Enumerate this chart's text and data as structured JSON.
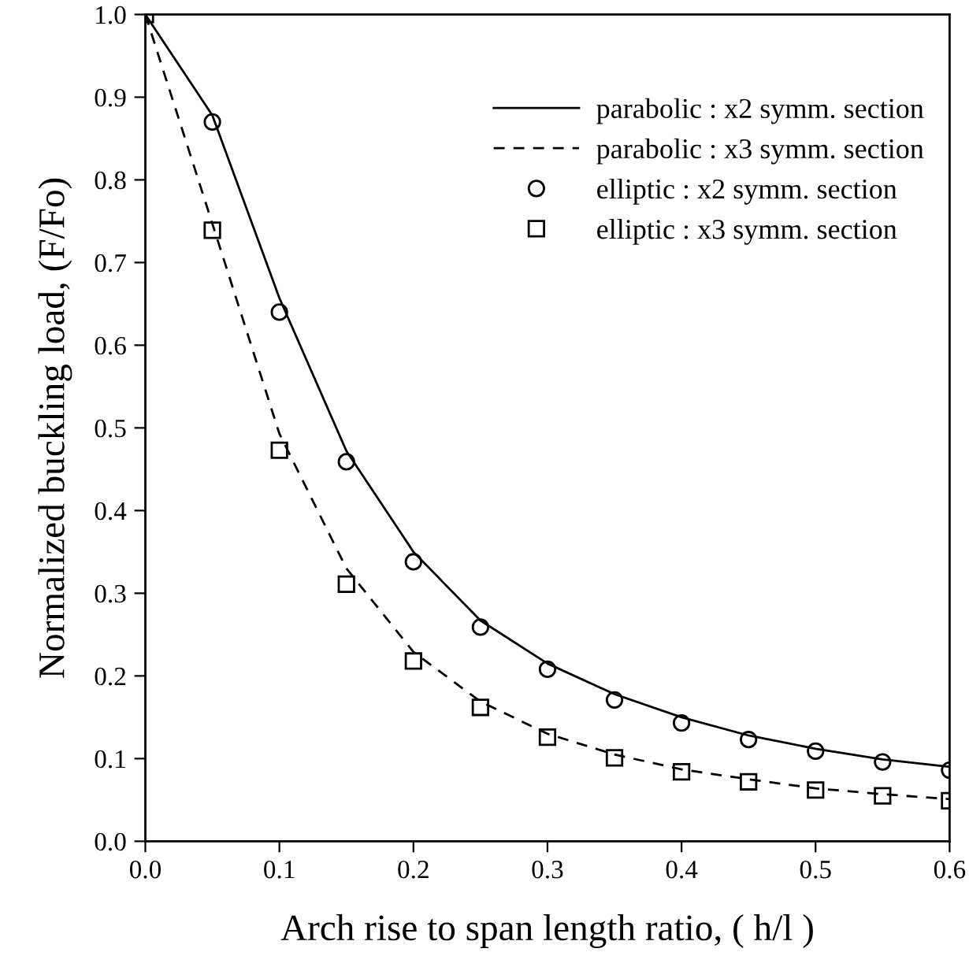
{
  "chart_data": {
    "type": "line",
    "xlabel": "Arch rise to span length ratio, ( h/l )",
    "ylabel": "Normalized buckling load, (F/Fo)",
    "x": [
      0.0,
      0.05,
      0.1,
      0.15,
      0.2,
      0.25,
      0.3,
      0.35,
      0.4,
      0.45,
      0.5,
      0.55,
      0.6
    ],
    "series": [
      {
        "name": "parabolic : x2 symm. section",
        "line_style": "solid",
        "marker": "none",
        "color": "#000000",
        "values": [
          1.0,
          0.878,
          0.657,
          0.472,
          0.35,
          0.267,
          0.215,
          0.178,
          0.15,
          0.128,
          0.112,
          0.099,
          0.09
        ]
      },
      {
        "name": "parabolic : x3 symm. section",
        "line_style": "dashed",
        "marker": "none",
        "color": "#000000",
        "values": [
          1.0,
          0.747,
          0.493,
          0.33,
          0.229,
          0.169,
          0.13,
          0.105,
          0.087,
          0.075,
          0.064,
          0.057,
          0.051
        ]
      },
      {
        "name": "elliptic : x2 symm. section",
        "type": "scatter",
        "marker": "circle",
        "color": "#000000",
        "values": [
          null,
          0.87,
          0.64,
          0.459,
          0.338,
          0.259,
          0.208,
          0.171,
          0.143,
          0.123,
          0.109,
          0.096,
          0.086
        ]
      },
      {
        "name": "elliptic : x3 symm. section",
        "type": "scatter",
        "marker": "square",
        "color": "#000000",
        "values": [
          1.0,
          0.739,
          0.473,
          0.311,
          0.218,
          0.162,
          0.126,
          0.101,
          0.084,
          0.072,
          0.062,
          0.055,
          0.049
        ]
      }
    ],
    "xlim": [
      0.0,
      0.6
    ],
    "xticks": [
      {
        "value": 0.0,
        "label": "0.0"
      },
      0.1,
      0.2,
      0.3,
      0.4,
      0.5,
      0.6
    ],
    "ylim": [
      0.0,
      1.0
    ],
    "yticks": [
      {
        "value": 0.0,
        "label": "0.0"
      },
      0.1,
      0.2,
      0.3,
      0.4,
      0.5,
      0.6,
      0.7,
      0.8,
      0.9,
      {
        "value": 1.0,
        "label": "1.0"
      }
    ],
    "grid": false,
    "legend": "top right"
  }
}
